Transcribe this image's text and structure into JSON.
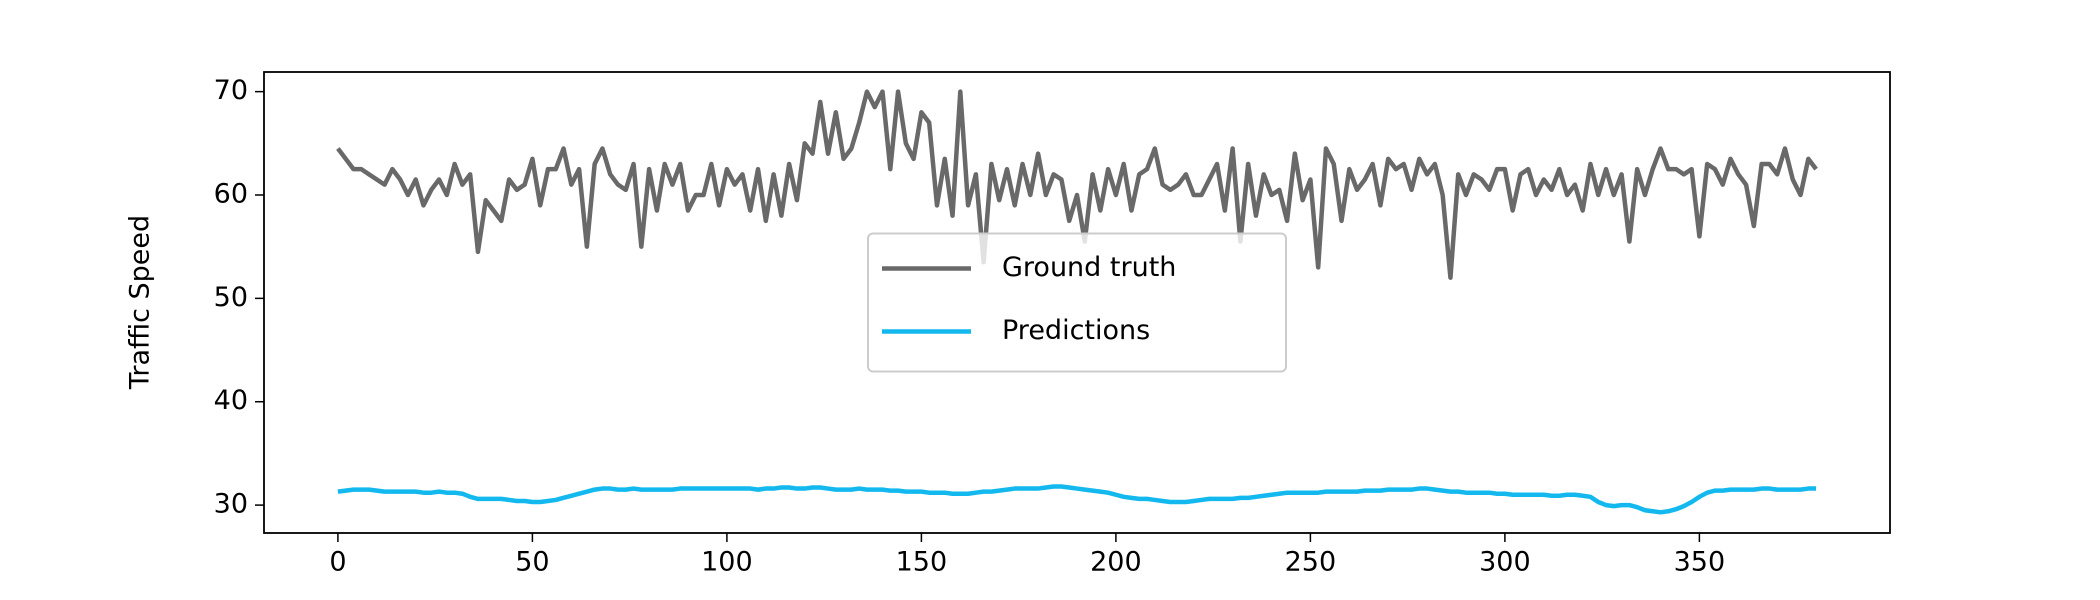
{
  "chart_data": {
    "type": "line",
    "y_label": "Traffic Speed",
    "x": [
      0,
      2,
      4,
      6,
      8,
      10,
      12,
      14,
      16,
      18,
      20,
      22,
      24,
      26,
      28,
      30,
      32,
      34,
      36,
      38,
      40,
      42,
      44,
      46,
      48,
      50,
      52,
      54,
      56,
      58,
      60,
      62,
      64,
      66,
      68,
      70,
      72,
      74,
      76,
      78,
      80,
      82,
      84,
      86,
      88,
      90,
      92,
      94,
      96,
      98,
      100,
      102,
      104,
      106,
      108,
      110,
      112,
      114,
      116,
      118,
      120,
      122,
      124,
      126,
      128,
      130,
      132,
      134,
      136,
      138,
      140,
      142,
      144,
      146,
      148,
      150,
      152,
      154,
      156,
      158,
      160,
      162,
      164,
      166,
      168,
      170,
      172,
      174,
      176,
      178,
      180,
      182,
      184,
      186,
      188,
      190,
      192,
      194,
      196,
      198,
      200,
      202,
      204,
      206,
      208,
      210,
      212,
      214,
      216,
      218,
      220,
      222,
      224,
      226,
      228,
      230,
      232,
      234,
      236,
      238,
      240,
      242,
      244,
      246,
      248,
      250,
      252,
      254,
      256,
      258,
      260,
      262,
      264,
      266,
      268,
      270,
      272,
      274,
      276,
      278,
      280,
      282,
      284,
      286,
      288,
      290,
      292,
      294,
      296,
      298,
      300,
      302,
      304,
      306,
      308,
      310,
      312,
      314,
      316,
      318,
      320,
      322,
      324,
      326,
      328,
      330,
      332,
      334,
      336,
      338,
      340,
      342,
      344,
      346,
      348,
      350,
      352,
      354,
      356,
      358,
      360,
      362,
      364,
      366,
      368,
      370,
      372,
      374,
      376,
      378,
      380
    ],
    "series": [
      {
        "name": "Ground truth",
        "color": "#696969",
        "values": [
          64.5,
          63.5,
          62.5,
          62.5,
          62,
          61.5,
          61,
          62.5,
          61.5,
          60,
          61.5,
          59,
          60.5,
          61.5,
          60,
          63,
          61,
          62,
          54.5,
          59.5,
          58.5,
          57.5,
          61.5,
          60.5,
          61,
          63.5,
          59,
          62.5,
          62.5,
          64.5,
          61,
          62.5,
          55,
          63,
          64.5,
          62,
          61,
          60.5,
          63,
          55,
          62.5,
          58.5,
          63,
          61,
          63,
          58.5,
          60,
          60,
          63,
          59,
          62.5,
          61,
          62,
          58.5,
          62.5,
          57.5,
          62,
          58,
          63,
          59.5,
          65,
          64,
          69,
          64,
          68,
          63.5,
          64.5,
          67,
          70,
          68.5,
          70,
          62.5,
          70,
          65,
          63.5,
          68,
          67,
          59,
          63.5,
          58,
          70,
          59,
          62,
          53.5,
          63,
          59.5,
          62.5,
          59,
          63,
          60,
          64,
          60,
          62,
          61.5,
          57.5,
          60,
          55.5,
          62,
          58.5,
          62.5,
          60,
          63,
          58.5,
          62,
          62.5,
          64.5,
          61,
          60.5,
          61,
          62,
          60,
          60,
          61.5,
          63,
          58.5,
          64.5,
          55.5,
          63,
          58,
          62,
          60,
          60.5,
          57.5,
          64,
          59.5,
          61.5,
          53,
          64.5,
          63,
          57.5,
          62.5,
          60.5,
          61.5,
          63,
          59,
          63.5,
          62.5,
          63,
          60.5,
          63.5,
          62,
          63,
          60,
          52,
          62,
          60,
          62,
          61.5,
          60.5,
          62.5,
          62.5,
          58.5,
          62,
          62.5,
          60,
          61.5,
          60.5,
          62.5,
          60,
          61,
          58.5,
          63,
          60,
          62.5,
          60,
          62,
          55.5,
          62.5,
          60,
          62.5,
          64.5,
          62.5,
          62.5,
          62,
          62.5,
          56,
          63,
          62.5,
          61,
          63.5,
          62,
          61,
          57,
          63,
          63,
          62,
          64.5,
          61.5,
          60,
          63.5,
          62.5
        ]
      },
      {
        "name": "Predictions",
        "color": "#13b9ee",
        "values": [
          31.3,
          31.4,
          31.5,
          31.5,
          31.5,
          31.4,
          31.3,
          31.3,
          31.3,
          31.3,
          31.3,
          31.2,
          31.2,
          31.3,
          31.2,
          31.2,
          31.1,
          30.8,
          30.6,
          30.6,
          30.6,
          30.6,
          30.5,
          30.4,
          30.4,
          30.3,
          30.3,
          30.4,
          30.5,
          30.7,
          30.9,
          31.1,
          31.3,
          31.5,
          31.6,
          31.6,
          31.5,
          31.5,
          31.6,
          31.5,
          31.5,
          31.5,
          31.5,
          31.5,
          31.6,
          31.6,
          31.6,
          31.6,
          31.6,
          31.6,
          31.6,
          31.6,
          31.6,
          31.6,
          31.5,
          31.6,
          31.6,
          31.7,
          31.7,
          31.6,
          31.6,
          31.7,
          31.7,
          31.6,
          31.5,
          31.5,
          31.5,
          31.6,
          31.5,
          31.5,
          31.5,
          31.4,
          31.4,
          31.3,
          31.3,
          31.3,
          31.2,
          31.2,
          31.2,
          31.1,
          31.1,
          31.1,
          31.2,
          31.3,
          31.3,
          31.4,
          31.5,
          31.6,
          31.6,
          31.6,
          31.6,
          31.7,
          31.8,
          31.8,
          31.7,
          31.6,
          31.5,
          31.4,
          31.3,
          31.2,
          31.0,
          30.8,
          30.7,
          30.6,
          30.6,
          30.5,
          30.4,
          30.3,
          30.3,
          30.3,
          30.4,
          30.5,
          30.6,
          30.6,
          30.6,
          30.6,
          30.7,
          30.7,
          30.8,
          30.9,
          31.0,
          31.1,
          31.2,
          31.2,
          31.2,
          31.2,
          31.2,
          31.3,
          31.3,
          31.3,
          31.3,
          31.3,
          31.4,
          31.4,
          31.4,
          31.5,
          31.5,
          31.5,
          31.5,
          31.6,
          31.6,
          31.5,
          31.4,
          31.3,
          31.3,
          31.2,
          31.2,
          31.2,
          31.2,
          31.1,
          31.1,
          31.0,
          31.0,
          31.0,
          31.0,
          31.0,
          30.9,
          30.9,
          31.0,
          31.0,
          30.9,
          30.8,
          30.3,
          30.0,
          29.9,
          30.0,
          30.0,
          29.8,
          29.5,
          29.4,
          29.3,
          29.4,
          29.6,
          29.9,
          30.3,
          30.8,
          31.2,
          31.4,
          31.4,
          31.5,
          31.5,
          31.5,
          31.5,
          31.6,
          31.6,
          31.5,
          31.5,
          31.5,
          31.5,
          31.6,
          31.6
        ]
      }
    ],
    "xlim": [
      -19,
      399
    ],
    "ylim": [
      27.3,
      71.9
    ],
    "xticks": [
      0,
      50,
      100,
      150,
      200,
      250,
      300,
      350
    ],
    "yticks": [
      30,
      40,
      50,
      60,
      70
    ],
    "legend": "center"
  }
}
